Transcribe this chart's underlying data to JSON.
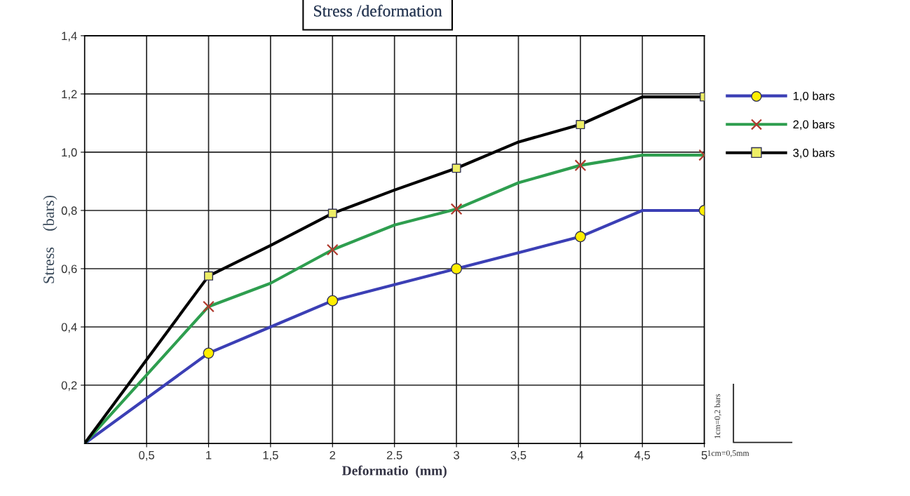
{
  "chart_data": {
    "type": "line",
    "title": "Stress /deformation",
    "xlabel": "Deformatio  (mm)",
    "ylabel": "Stress    (bars)",
    "xlim": [
      0,
      5
    ],
    "ylim": [
      0,
      1.4
    ],
    "xticks": [
      {
        "value": 0.5,
        "label": "0,5"
      },
      1,
      {
        "value": 1.5,
        "label": "1,5"
      },
      2,
      2.5,
      3,
      {
        "value": 3.5,
        "label": "3,5"
      },
      4,
      {
        "value": 4.5,
        "label": "4,5"
      },
      5
    ],
    "yticks": [
      {
        "value": 0.2,
        "label": "0,2"
      },
      {
        "value": 0.4,
        "label": "0,4"
      },
      {
        "value": 0.6,
        "label": "0,6"
      },
      {
        "value": 0.8,
        "label": "0,8"
      },
      {
        "value": 1.0,
        "label": "1,0"
      },
      {
        "value": 1.2,
        "label": "1,2"
      },
      {
        "value": 1.4,
        "label": "1,4"
      }
    ],
    "grid": true,
    "legend": "right",
    "line_style": "solid",
    "series": [
      {
        "name": "1,0 bars",
        "type": "line",
        "marker": "none",
        "color": "#3b3fb5",
        "x": [
          0,
          1,
          1.5,
          2,
          2.5,
          3,
          3.5,
          4,
          4.5,
          5
        ],
        "values": [
          0,
          0.31,
          0.4,
          0.49,
          0.545,
          0.6,
          0.655,
          0.71,
          0.8,
          0.8
        ]
      },
      {
        "name": "2,0 bars",
        "type": "line",
        "marker": "none",
        "color": "#2e9e4f",
        "x": [
          0,
          1,
          1.5,
          2,
          2.5,
          3,
          3.5,
          4,
          4.5,
          5
        ],
        "values": [
          0,
          0.47,
          0.55,
          0.665,
          0.75,
          0.805,
          0.895,
          0.955,
          0.99,
          0.99
        ]
      },
      {
        "name": "3,0 bars",
        "type": "line",
        "marker": "none",
        "color": "#000000",
        "x": [
          0,
          1,
          1.5,
          2,
          2.5,
          3,
          3.5,
          4,
          4.5,
          5
        ],
        "values": [
          0,
          0.575,
          0.68,
          0.79,
          0.87,
          0.945,
          1.035,
          1.095,
          1.19,
          1.19
        ]
      },
      {
        "type": "scatter",
        "marker": "circle",
        "color": "#ffee00",
        "x": [
          1,
          2,
          3,
          4,
          5
        ],
        "values": [
          0.31,
          0.49,
          0.6,
          0.71,
          0.8
        ]
      },
      {
        "type": "scatter",
        "marker": "cross",
        "color": "#b03a2e",
        "x": [
          1,
          2,
          3,
          4,
          5
        ],
        "values": [
          0.47,
          0.665,
          0.805,
          0.955,
          0.99
        ]
      },
      {
        "type": "scatter",
        "marker": "square",
        "color": "#eeee66",
        "x": [
          1,
          2,
          3,
          4,
          5
        ],
        "values": [
          0.575,
          0.79,
          0.945,
          1.095,
          1.19
        ]
      }
    ],
    "annotations": [
      "1cm=0,2 bars",
      "1cm=0,5mm"
    ]
  }
}
